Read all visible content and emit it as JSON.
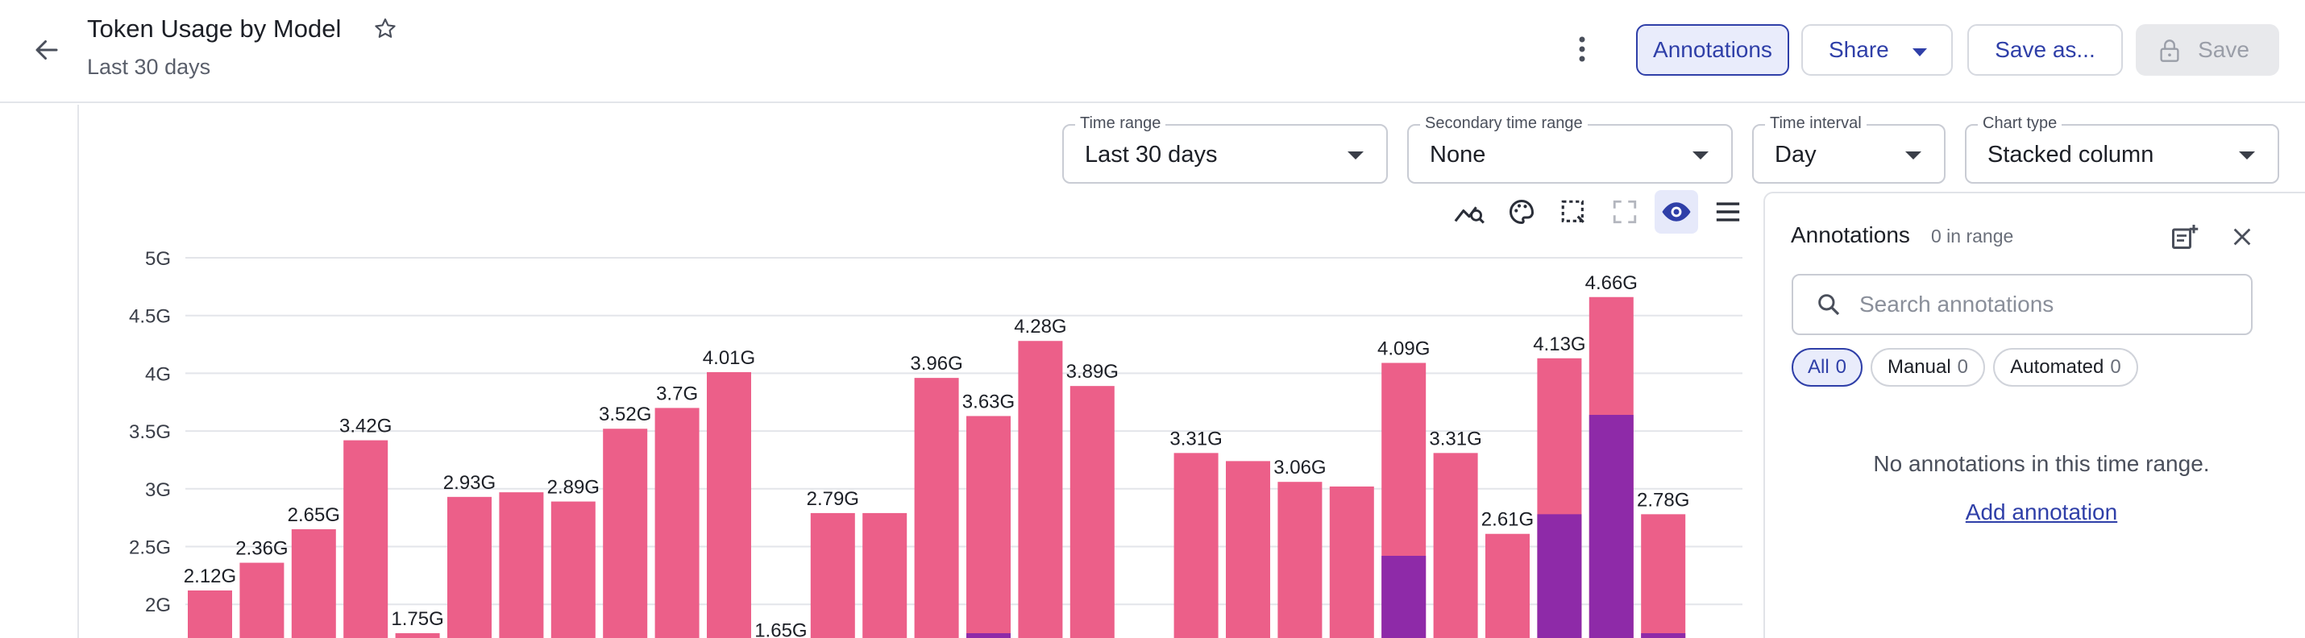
{
  "header": {
    "title": "Token Usage by Model",
    "subtitle": "Last 30 days",
    "annotations_label": "Annotations",
    "share_label": "Share",
    "save_as_label": "Save as...",
    "save_label": "Save"
  },
  "controls": {
    "time_range": {
      "label": "Time range",
      "value": "Last 30 days"
    },
    "secondary_time_range": {
      "label": "Secondary time range",
      "value": "None"
    },
    "time_interval": {
      "label": "Time interval",
      "value": "Day"
    },
    "chart_type": {
      "label": "Chart type",
      "value": "Stacked column"
    }
  },
  "toolbar": {
    "icons": [
      "trend-analyze-icon",
      "palette-icon",
      "select-region-icon",
      "fullscreen-icon",
      "eye-icon",
      "menu-icon"
    ]
  },
  "annotations_panel": {
    "title": "Annotations",
    "count_text": "0 in range",
    "search_placeholder": "Search annotations",
    "chips": [
      {
        "label": "All",
        "count": "0"
      },
      {
        "label": "Manual",
        "count": "0"
      },
      {
        "label": "Automated",
        "count": "0"
      }
    ],
    "empty_message": "No annotations in this time range.",
    "add_link": "Add annotation"
  },
  "colors": {
    "series_pink": "#ec5f89",
    "series_purple": "#8e2aa8",
    "accent": "#2f3fa8"
  },
  "chart_data": {
    "type": "bar",
    "stacked": true,
    "y_ticks": [
      "5G",
      "4.5G",
      "4G",
      "3.5G",
      "3G",
      "2.5G",
      "2G"
    ],
    "y_visible_range": [
      1.7,
      5.0
    ],
    "grid": true,
    "bars": [
      {
        "total": 2.12,
        "purple": 0,
        "label": "2.12G"
      },
      {
        "total": 2.36,
        "purple": 0,
        "label": "2.36G"
      },
      {
        "total": 2.65,
        "purple": 0,
        "label": "2.65G"
      },
      {
        "total": 3.42,
        "purple": 0,
        "label": "3.42G"
      },
      {
        "total": 1.75,
        "purple": 0,
        "label": "1.75G"
      },
      {
        "total": 2.93,
        "purple": 0,
        "label": "2.93G"
      },
      {
        "total": 2.97,
        "purple": 0,
        "label": ""
      },
      {
        "total": 2.89,
        "purple": 0,
        "label": "2.89G"
      },
      {
        "total": 3.52,
        "purple": 0,
        "label": "3.52G"
      },
      {
        "total": 3.7,
        "purple": 0,
        "label": "3.7G"
      },
      {
        "total": 4.01,
        "purple": 0,
        "label": "4.01G"
      },
      {
        "total": 1.65,
        "purple": 0,
        "label": "1.65G"
      },
      {
        "total": 2.79,
        "purple": 0,
        "label": "2.79G"
      },
      {
        "total": 2.79,
        "purple": 0,
        "label": ""
      },
      {
        "total": 3.96,
        "purple": 0,
        "label": "3.96G"
      },
      {
        "total": 3.63,
        "purple": 1.75,
        "label": "3.63G"
      },
      {
        "total": 4.28,
        "purple": 0,
        "label": "4.28G"
      },
      {
        "total": 3.89,
        "purple": 0,
        "label": "3.89G"
      },
      {
        "total": 0,
        "purple": 0,
        "label": ""
      },
      {
        "total": 3.31,
        "purple": 0,
        "label": "3.31G"
      },
      {
        "total": 3.24,
        "purple": 0,
        "label": ""
      },
      {
        "total": 3.06,
        "purple": 0,
        "label": "3.06G"
      },
      {
        "total": 3.02,
        "purple": 0,
        "label": ""
      },
      {
        "total": 4.09,
        "purple": 2.42,
        "label": "4.09G"
      },
      {
        "total": 3.31,
        "purple": 0,
        "label": "3.31G"
      },
      {
        "total": 2.61,
        "purple": 0,
        "label": "2.61G"
      },
      {
        "total": 4.13,
        "purple": 2.78,
        "label": "4.13G"
      },
      {
        "total": 4.66,
        "purple": 3.64,
        "label": "4.66G"
      },
      {
        "total": 2.78,
        "purple": 1.75,
        "label": "2.78G"
      }
    ]
  }
}
